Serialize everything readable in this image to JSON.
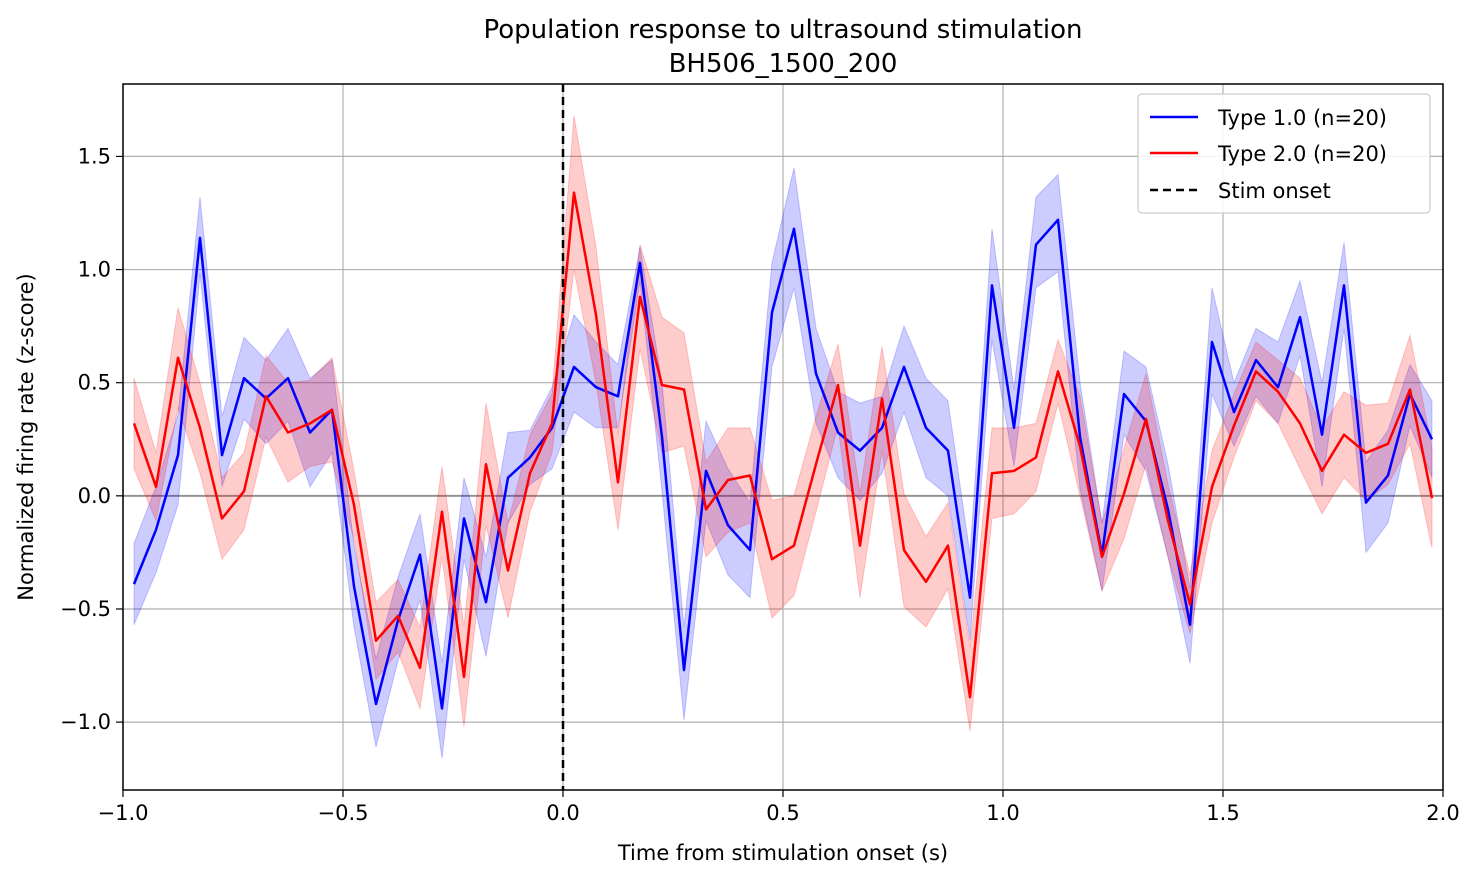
{
  "chart_data": {
    "type": "line",
    "title": "Population response to ultrasound stimulation",
    "subtitle": "BH506_1500_200",
    "xlabel": "Time from stimulation onset (s)",
    "ylabel": "Normalized firing rate (z-score)",
    "xlim": [
      -1.0,
      2.0
    ],
    "ylim": [
      -1.3,
      1.82
    ],
    "x_ticks": [
      -1.0,
      -0.5,
      0.0,
      0.5,
      1.0,
      1.5,
      2.0
    ],
    "x_tick_labels": [
      "−1.0",
      "−0.5",
      "0.0",
      "0.5",
      "1.0",
      "1.5",
      "2.0"
    ],
    "y_ticks": [
      -1.0,
      -0.5,
      0.0,
      0.5,
      1.0,
      1.5
    ],
    "y_tick_labels": [
      "−1.0",
      "−0.5",
      "0.0",
      "0.5",
      "1.0",
      "1.5"
    ],
    "grid": true,
    "zero_line": 0,
    "legend_position": "top-right",
    "x": [
      -0.975,
      -0.925,
      -0.875,
      -0.825,
      -0.775,
      -0.725,
      -0.675,
      -0.625,
      -0.575,
      -0.525,
      -0.475,
      -0.425,
      -0.375,
      -0.325,
      -0.275,
      -0.225,
      -0.175,
      -0.125,
      -0.075,
      -0.025,
      0.025,
      0.075,
      0.125,
      0.175,
      0.225,
      0.275,
      0.325,
      0.375,
      0.425,
      0.475,
      0.525,
      0.575,
      0.625,
      0.675,
      0.725,
      0.775,
      0.825,
      0.875,
      0.925,
      0.975,
      1.025,
      1.075,
      1.125,
      1.175,
      1.225,
      1.275,
      1.325,
      1.375,
      1.425,
      1.475,
      1.525,
      1.575,
      1.625,
      1.675,
      1.725,
      1.775,
      1.825,
      1.875,
      1.925,
      1.975
    ],
    "series": [
      {
        "name": "Type 1.0 (n=20)",
        "color": "#0000ff",
        "values": [
          -0.39,
          -0.15,
          0.18,
          1.14,
          0.18,
          0.52,
          0.43,
          0.52,
          0.28,
          0.38,
          -0.4,
          -0.92,
          -0.55,
          -0.26,
          -0.94,
          -0.1,
          -0.47,
          0.08,
          0.17,
          0.3,
          0.57,
          0.48,
          0.44,
          1.03,
          0.26,
          -0.77,
          0.11,
          -0.13,
          -0.24,
          0.81,
          1.18,
          0.54,
          0.28,
          0.2,
          0.3,
          0.57,
          0.3,
          0.2,
          -0.45,
          0.93,
          0.3,
          1.11,
          1.22,
          0.26,
          -0.26,
          0.45,
          0.33,
          -0.06,
          -0.57,
          0.68,
          0.37,
          0.6,
          0.48,
          0.79,
          0.27,
          0.93,
          -0.03,
          0.09,
          0.45,
          0.25
        ],
        "band_upper": [
          -0.21,
          0.04,
          0.36,
          1.32,
          0.35,
          0.7,
          0.6,
          0.74,
          0.52,
          0.6,
          -0.22,
          -0.72,
          -0.36,
          -0.08,
          -0.74,
          0.08,
          -0.27,
          0.28,
          0.29,
          0.48,
          0.8,
          0.68,
          0.58,
          1.1,
          0.5,
          -0.58,
          0.33,
          0.12,
          -0.03,
          1.03,
          1.45,
          0.74,
          0.46,
          0.41,
          0.44,
          0.75,
          0.52,
          0.42,
          -0.26,
          1.18,
          0.47,
          1.32,
          1.42,
          0.5,
          -0.12,
          0.64,
          0.57,
          0.14,
          -0.41,
          0.92,
          0.5,
          0.74,
          0.68,
          0.95,
          0.5,
          1.12,
          0.15,
          0.29,
          0.58,
          0.42
        ],
        "band_lower": [
          -0.57,
          -0.34,
          -0.04,
          0.98,
          0.04,
          0.34,
          0.23,
          0.33,
          0.04,
          0.19,
          -0.58,
          -1.11,
          -0.73,
          -0.46,
          -1.16,
          -0.28,
          -0.71,
          -0.12,
          0.05,
          0.12,
          0.37,
          0.3,
          0.3,
          0.95,
          0.02,
          -0.99,
          -0.11,
          -0.35,
          -0.45,
          0.57,
          0.92,
          0.32,
          0.08,
          -0.02,
          0.1,
          0.37,
          0.08,
          0.0,
          -0.64,
          0.69,
          0.13,
          0.92,
          0.99,
          0.03,
          -0.42,
          0.27,
          0.11,
          -0.27,
          -0.74,
          0.45,
          0.22,
          0.44,
          0.32,
          0.62,
          0.04,
          0.74,
          -0.25,
          -0.12,
          0.31,
          0.08
        ]
      },
      {
        "name": "Type 2.0 (n=20)",
        "color": "#ff0000",
        "values": [
          0.32,
          0.04,
          0.61,
          0.3,
          -0.1,
          0.02,
          0.44,
          0.28,
          0.32,
          0.38,
          -0.04,
          -0.64,
          -0.53,
          -0.76,
          -0.07,
          -0.8,
          0.14,
          -0.33,
          0.1,
          0.32,
          1.34,
          0.8,
          0.06,
          0.88,
          0.49,
          0.47,
          -0.06,
          0.07,
          0.09,
          -0.28,
          -0.22,
          0.14,
          0.49,
          -0.22,
          0.43,
          -0.24,
          -0.38,
          -0.22,
          -0.89,
          0.1,
          0.11,
          0.17,
          0.55,
          0.22,
          -0.27,
          0.01,
          0.34,
          -0.11,
          -0.48,
          0.04,
          0.31,
          0.55,
          0.46,
          0.32,
          0.11,
          0.27,
          0.19,
          0.23,
          0.47,
          -0.01
        ],
        "band_upper": [
          0.52,
          0.19,
          0.83,
          0.5,
          0.08,
          0.19,
          0.62,
          0.5,
          0.51,
          0.61,
          0.11,
          -0.47,
          -0.37,
          -0.58,
          0.13,
          -0.58,
          0.41,
          -0.12,
          0.27,
          0.45,
          1.68,
          1.1,
          0.27,
          1.11,
          0.79,
          0.72,
          0.15,
          0.3,
          0.3,
          -0.02,
          0.0,
          0.35,
          0.67,
          0.01,
          0.66,
          0.01,
          -0.18,
          -0.03,
          -0.67,
          0.3,
          0.3,
          0.32,
          0.69,
          0.44,
          -0.12,
          0.21,
          0.54,
          0.05,
          -0.35,
          0.2,
          0.45,
          0.68,
          0.6,
          0.52,
          0.3,
          0.46,
          0.4,
          0.41,
          0.71,
          0.21
        ],
        "band_lower": [
          0.12,
          -0.11,
          0.39,
          0.1,
          -0.28,
          -0.15,
          0.26,
          0.06,
          0.13,
          0.15,
          -0.19,
          -0.81,
          -0.69,
          -0.94,
          -0.27,
          -1.02,
          -0.13,
          -0.54,
          -0.07,
          0.19,
          1.0,
          0.5,
          -0.15,
          0.65,
          0.19,
          0.22,
          -0.27,
          -0.16,
          -0.12,
          -0.54,
          -0.44,
          -0.07,
          0.31,
          -0.45,
          0.2,
          -0.49,
          -0.58,
          -0.41,
          -1.04,
          -0.1,
          -0.08,
          0.02,
          0.41,
          0.0,
          -0.42,
          -0.19,
          0.14,
          -0.27,
          -0.61,
          -0.12,
          0.17,
          0.42,
          0.32,
          0.12,
          -0.08,
          0.08,
          -0.02,
          0.05,
          0.23,
          -0.23
        ]
      }
    ],
    "vline": {
      "x": 0.0,
      "label": "Stim onset",
      "color": "#000000",
      "style": "dashed"
    }
  }
}
